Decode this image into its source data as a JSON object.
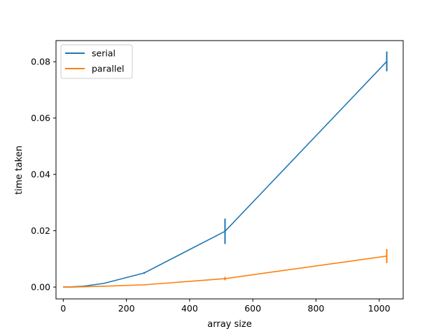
{
  "chart_data": {
    "type": "line",
    "title": "",
    "xlabel": "array size",
    "ylabel": "time taken",
    "xlim": [
      -23,
      1076
    ],
    "ylim": [
      -0.0042,
      0.0875
    ],
    "xticks": [
      0,
      200,
      400,
      600,
      800,
      1000
    ],
    "yticks": [
      0.0,
      0.02,
      0.04,
      0.06,
      0.08
    ],
    "xtick_labels": [
      "0",
      "200",
      "400",
      "600",
      "800",
      "1000"
    ],
    "ytick_labels": [
      "0.00",
      "0.02",
      "0.04",
      "0.06",
      "0.08"
    ],
    "grid": false,
    "legend": {
      "position": "top-left"
    },
    "series": [
      {
        "name": "serial",
        "color": "#1f77b4",
        "x": [
          1,
          2,
          4,
          8,
          16,
          32,
          64,
          128,
          256,
          512,
          1024
        ],
        "y": [
          0.0,
          0.0,
          0.0,
          0.0,
          0.0,
          0.0001,
          0.0003,
          0.0013,
          0.005,
          0.0198,
          0.0801
        ],
        "error": [
          0,
          0,
          0,
          0,
          0,
          0,
          0.0001,
          0.0001,
          0.0003,
          0.0045,
          0.0035
        ]
      },
      {
        "name": "parallel",
        "color": "#ff7f0e",
        "x": [
          1,
          2,
          4,
          8,
          16,
          32,
          64,
          128,
          256,
          512,
          1024
        ],
        "y": [
          0.0,
          0.0,
          0.0,
          0.0,
          0.0,
          0.0,
          0.0001,
          0.0003,
          0.0008,
          0.003,
          0.011
        ],
        "error": [
          0,
          0,
          0,
          0,
          0,
          0,
          0.0,
          0.0001,
          0.0002,
          0.0006,
          0.0025
        ]
      }
    ]
  }
}
